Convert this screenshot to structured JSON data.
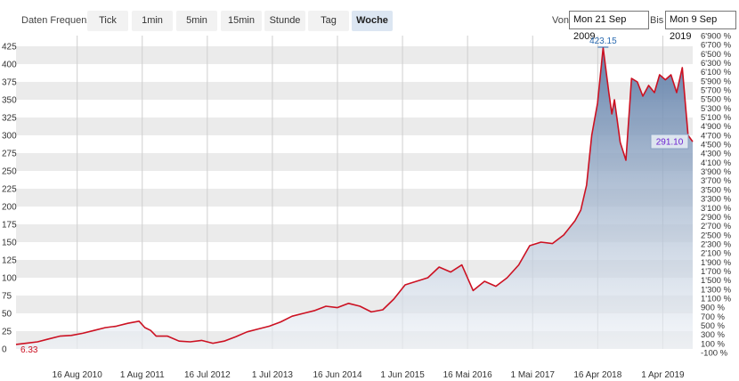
{
  "toolbar": {
    "frequency_label": "Daten Frequenz",
    "buttons": [
      {
        "label": "Tick"
      },
      {
        "label": "1min"
      },
      {
        "label": "5min"
      },
      {
        "label": "15min"
      },
      {
        "label": "Stunde"
      },
      {
        "label": "Tag"
      },
      {
        "label": "Woche",
        "active": true
      }
    ],
    "from_label": "Von",
    "from_value": "Mon 21 Sep 2009",
    "to_label": "Bis",
    "to_value": "Mon 9 Sep 2019"
  },
  "colors": {
    "line": "#cc1122",
    "area_top": "#5b7ba6",
    "area_bottom": "#eef2f7",
    "band": "#ebebeb",
    "max_label": "#2a6ab0",
    "last_label_text": "#6a1fd0",
    "last_label_bg": "#dde5ef"
  },
  "chart_data": {
    "type": "area",
    "x_tick_labels": [
      "16 Aug 2010",
      "1 Aug 2011",
      "16 Jul 2012",
      "1 Jul 2013",
      "16 Jun 2014",
      "1 Jun 2015",
      "16 Mai 2016",
      "1 Mai 2017",
      "16 Apr 2018",
      "1 Apr 2019"
    ],
    "y_ticks": [
      0,
      25,
      50,
      75,
      100,
      125,
      150,
      175,
      200,
      225,
      250,
      275,
      300,
      325,
      350,
      375,
      400,
      425
    ],
    "ylim": [
      0,
      440
    ],
    "y2_ticks": [
      "-100 %",
      "100 %",
      "300 %",
      "500 %",
      "700 %",
      "900 %",
      "1'100 %",
      "1'300 %",
      "1'500 %",
      "1'700 %",
      "1'900 %",
      "2'100 %",
      "2'300 %",
      "2'500 %",
      "2'700 %",
      "2'900 %",
      "3'100 %",
      "3'300 %",
      "3'500 %",
      "3'700 %",
      "3'900 %",
      "4'100 %",
      "4'300 %",
      "4'500 %",
      "4'700 %",
      "4'900 %",
      "5'100 %",
      "5'300 %",
      "5'500 %",
      "5'700 %",
      "5'900 %",
      "6'100 %",
      "6'300 %",
      "6'500 %",
      "6'700 %",
      "6'900 %"
    ],
    "start_value": 6.33,
    "start_label": "6.33",
    "max_value": 423.15,
    "max_label": "423.15",
    "last_value": 291.1,
    "last_label": "291.10",
    "series": [
      {
        "x": [
          "2009-09-21",
          "2009-11-15",
          "2010-01-15",
          "2010-03-15",
          "2010-05-15",
          "2010-07-15",
          "2010-09-15",
          "2010-11-15",
          "2011-01-15",
          "2011-03-15",
          "2011-05-15",
          "2011-07-15",
          "2011-08-15",
          "2011-09-15",
          "2011-10-15",
          "2011-12-15",
          "2012-02-15",
          "2012-04-15",
          "2012-06-15",
          "2012-08-15",
          "2012-10-15",
          "2012-12-15",
          "2013-02-15",
          "2013-04-15",
          "2013-06-15",
          "2013-08-15",
          "2013-10-15",
          "2013-12-15",
          "2014-02-15",
          "2014-04-15",
          "2014-06-15",
          "2014-08-15",
          "2014-10-15",
          "2014-12-15",
          "2015-02-15",
          "2015-04-15",
          "2015-06-15",
          "2015-08-15",
          "2015-10-15",
          "2015-12-15",
          "2016-02-15",
          "2016-04-15",
          "2016-06-15",
          "2016-08-15",
          "2016-10-15",
          "2016-12-15",
          "2017-02-15",
          "2017-04-15",
          "2017-06-15",
          "2017-08-15",
          "2017-10-15",
          "2017-12-15",
          "2018-01-15",
          "2018-02-15",
          "2018-03-15",
          "2018-04-15",
          "2018-05-15",
          "2018-06-15",
          "2018-07-01",
          "2018-07-15",
          "2018-08-15",
          "2018-09-15",
          "2018-10-15",
          "2018-11-15",
          "2018-12-15",
          "2019-01-15",
          "2019-02-15",
          "2019-03-15",
          "2019-04-15",
          "2019-05-15",
          "2019-06-15",
          "2019-07-15",
          "2019-08-15",
          "2019-09-09"
        ],
        "y": [
          6.33,
          8,
          10,
          14,
          18,
          19,
          22,
          26,
          30,
          32,
          36,
          39,
          30,
          26,
          18,
          18,
          11,
          10,
          12,
          8,
          11,
          17,
          24,
          28,
          32,
          38,
          46,
          50,
          54,
          60,
          58,
          64,
          60,
          52,
          55,
          70,
          90,
          95,
          100,
          115,
          108,
          118,
          82,
          95,
          88,
          100,
          118,
          145,
          150,
          148,
          160,
          180,
          195,
          230,
          300,
          345,
          423,
          360,
          330,
          350,
          290,
          265,
          380,
          375,
          355,
          370,
          360,
          385,
          378,
          385,
          360,
          395,
          300,
          291.1
        ]
      }
    ]
  }
}
